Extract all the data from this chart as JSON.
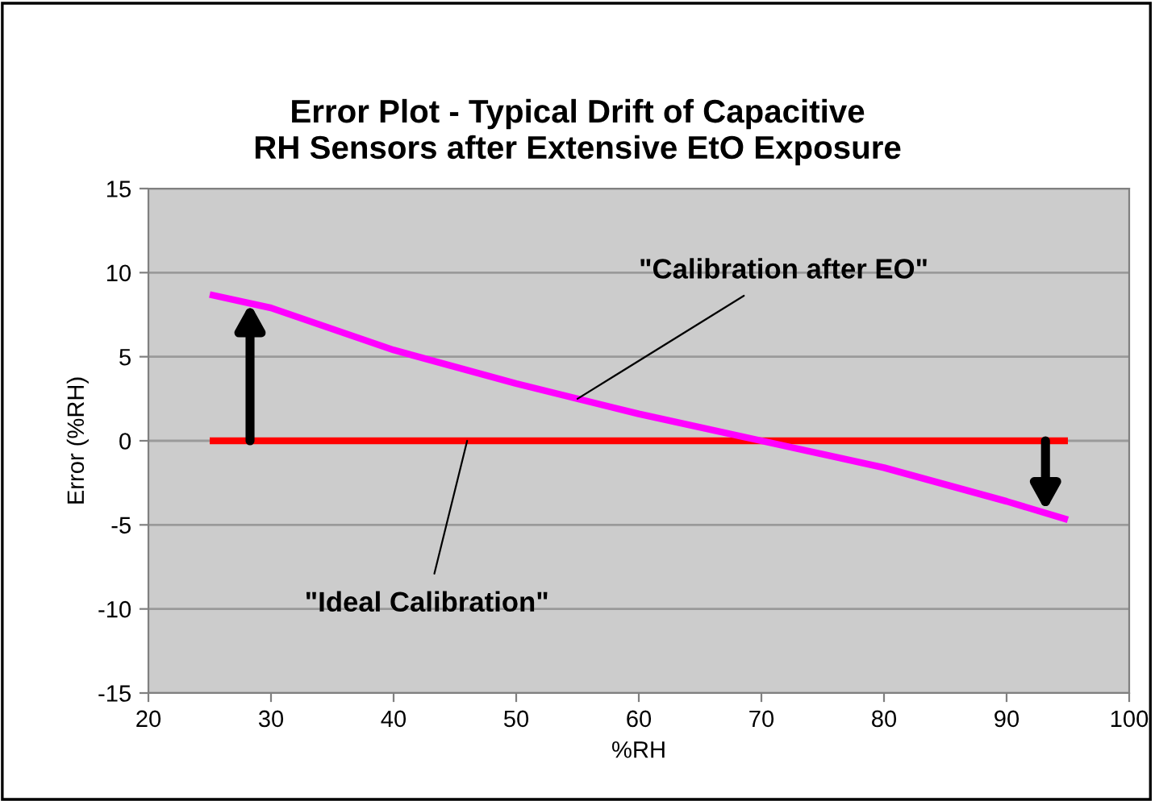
{
  "chart_data": {
    "type": "line",
    "title": "Error Plot - Typical Drift of Capacitive\nRH Sensors after Extensive EtO Exposure",
    "xlabel": "%RH",
    "ylabel": "Error (%RH)",
    "series": [
      {
        "color": "#ff0000",
        "x": [
          25,
          95
        ],
        "values": [
          0,
          0
        ]
      },
      {
        "color": "#ff00ff",
        "x": [
          25,
          30,
          40,
          50,
          60,
          70,
          80,
          90,
          95
        ],
        "values": [
          8.7,
          7.9,
          5.4,
          3.4,
          1.6,
          0,
          -1.6,
          -3.6,
          -4.7
        ]
      }
    ],
    "annotations": [
      {
        "text": "\"Calibration after EO\"",
        "x": 55,
        "y": 2.5
      },
      {
        "text": "\"Ideal Calibration\"",
        "x": 46,
        "y": 0
      }
    ],
    "xlim": [
      20,
      100
    ],
    "xticks": [
      20,
      30,
      40,
      50,
      60,
      70,
      80,
      90,
      100
    ],
    "ylim": [
      -15,
      15
    ],
    "yticks": [
      -15,
      -10,
      -5,
      0,
      5,
      10,
      15
    ],
    "grid": "y",
    "legend": false,
    "marker": "none",
    "line_style": "solid"
  }
}
